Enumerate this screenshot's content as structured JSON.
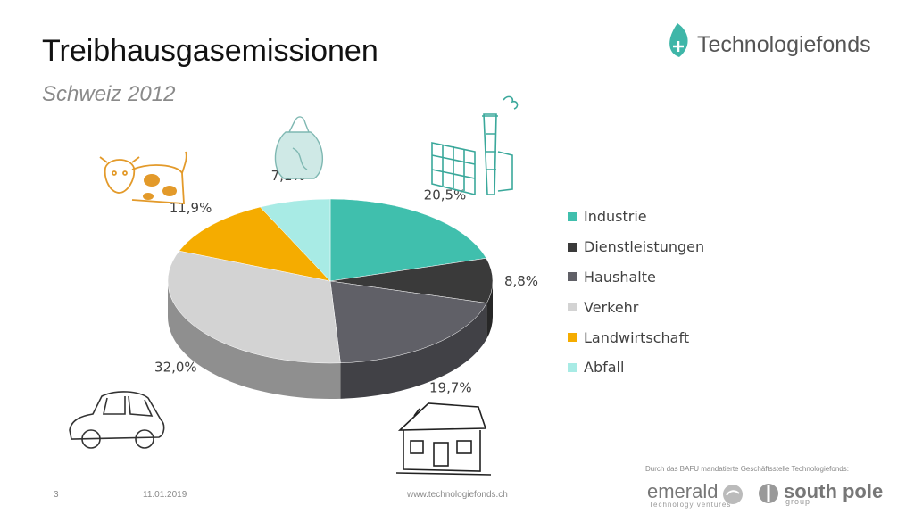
{
  "slide": {
    "title": "Treibhausgasemissionen",
    "subtitle": "Schweiz 2012",
    "page_number": "3",
    "date": "11.01.2019",
    "website": "www.technologiefonds.ch",
    "mandate_note": "Durch das BAFU mandatierte Geschäftsstelle Technologiefonds:"
  },
  "brand": {
    "name": "Technologiefonds",
    "accent_color": "#3fb6a8",
    "partners": [
      "emerald",
      "south pole"
    ],
    "partner_sublines": [
      "Technology ventures",
      "group"
    ]
  },
  "chart_data": {
    "type": "pie",
    "title": "",
    "categories": [
      "Industrie",
      "Dienstleistungen",
      "Haushalte",
      "Verkehr",
      "Landwirtschaft",
      "Abfall"
    ],
    "values": [
      20.5,
      8.8,
      19.7,
      32.0,
      11.9,
      7.1
    ],
    "data_labels": [
      "20,5%",
      "8,8%",
      "19,7%",
      "32,0%",
      "11,9%",
      "7,1%"
    ],
    "colors": [
      "#40bfad",
      "#3a3a3a",
      "#606067",
      "#d3d3d3",
      "#f5ac00",
      "#a8ebe5"
    ],
    "style": "3d",
    "legend_position": "right"
  },
  "illustrations": [
    "factory-icon",
    "house-icon",
    "car-icon",
    "cow-icon",
    "trash-bag-icon"
  ]
}
